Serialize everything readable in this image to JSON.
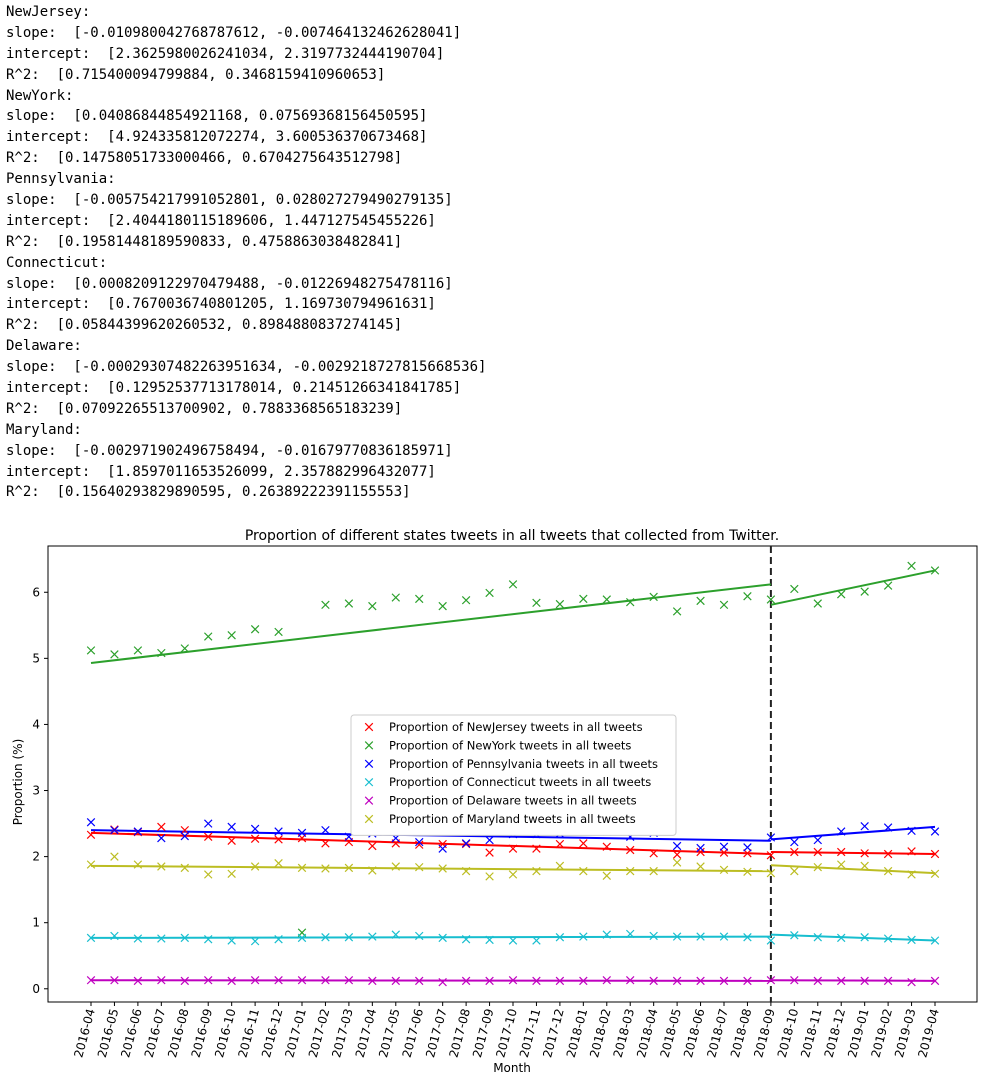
{
  "console": {
    "lines": [
      "NewJersey:",
      "slope:  [-0.010980042768787612, -0.007464132462628041]",
      "intercept:  [2.3625980026241034, 2.3197732444190704]",
      "R^2:  [0.715400094799884, 0.3468159410960653]",
      "NewYork:",
      "slope:  [0.04086844854921168, 0.07569368156450595]",
      "intercept:  [4.924335812072274, 3.600536370673468]",
      "R^2:  [0.14758051733000466, 0.6704275643512798]",
      "Pennsylvania:",
      "slope:  [-0.005754217991052801, 0.028027279490279135]",
      "intercept:  [2.4044180115189606, 1.447127545455226]",
      "R^2:  [0.19581448189590833, 0.4758863038482841]",
      "Connecticut:",
      "slope:  [0.0008209122970479488, -0.01226948275478116]",
      "intercept:  [0.7670036740801205, 1.169730794961631]",
      "R^2:  [0.05844399620260532, 0.8984880837274145]",
      "Delaware:",
      "slope:  [-0.00029307482263951634, -0.0029218727815668536]",
      "intercept:  [0.12952537713178014, 0.21451266341841785]",
      "R^2:  [0.07092265513700902, 0.7883368565183239]",
      "Maryland:",
      "slope:  [-0.002971902496758494, -0.01679770836185971]",
      "intercept:  [1.8597011653526099, 2.357882996432077]",
      "R^2:  [0.15640293829890595, 0.26389222391155553]"
    ]
  },
  "chart_data": {
    "type": "scatter",
    "title": "Proportion of different states tweets in all tweets that collected from Twitter.",
    "xlabel": "Month",
    "ylabel": "Proportion (%)",
    "ylim": [
      -0.2,
      6.7
    ],
    "yticks": [
      0,
      1,
      2,
      3,
      4,
      5,
      6
    ],
    "grid": false,
    "legend_position": "center",
    "breakpoint": "2018-09",
    "categories": [
      "2016-04",
      "2016-05",
      "2016-06",
      "2016-07",
      "2016-08",
      "2016-09",
      "2016-10",
      "2016-11",
      "2016-12",
      "2017-01",
      "2017-02",
      "2017-03",
      "2017-04",
      "2017-05",
      "2017-06",
      "2017-07",
      "2017-08",
      "2017-09",
      "2017-10",
      "2017-11",
      "2017-12",
      "2018-01",
      "2018-02",
      "2018-03",
      "2018-04",
      "2018-05",
      "2018-06",
      "2018-07",
      "2018-08",
      "2018-09",
      "2018-10",
      "2018-11",
      "2018-12",
      "2019-01",
      "2019-02",
      "2019-03",
      "2019-04"
    ],
    "series": [
      {
        "name": "Proportion of NewJersey tweets in all tweets",
        "color": "#ff0000",
        "values": [
          2.33,
          2.41,
          2.37,
          2.45,
          2.4,
          2.3,
          2.24,
          2.27,
          2.26,
          2.28,
          2.2,
          2.22,
          2.16,
          2.2,
          2.18,
          2.19,
          2.19,
          2.06,
          2.12,
          2.12,
          2.19,
          2.2,
          2.15,
          2.1,
          2.05,
          2.03,
          2.07,
          2.06,
          2.05,
          2.02,
          2.07,
          2.07,
          2.07,
          2.05,
          2.04,
          2.08,
          2.04
        ],
        "trend": [
          [
            2.36,
            2.04
          ],
          [
            2.07,
            2.04
          ]
        ]
      },
      {
        "name": "Proportion of NewYork tweets in all tweets",
        "color": "#2ca02c",
        "values": [
          5.12,
          5.06,
          5.12,
          5.08,
          5.15,
          5.33,
          5.35,
          5.44,
          5.4,
          0.85,
          5.81,
          5.83,
          5.79,
          5.92,
          5.9,
          5.79,
          5.88,
          5.99,
          6.12,
          5.84,
          5.82,
          5.9,
          5.89,
          5.85,
          5.93,
          5.71,
          5.87,
          5.81,
          5.94,
          5.89,
          6.05,
          5.83,
          5.97,
          6.01,
          6.1,
          6.4,
          6.33
        ],
        "trend": [
          [
            4.93,
            6.12
          ],
          [
            5.81,
            6.33
          ]
        ]
      },
      {
        "name": "Proportion of Pennsylvania tweets in all tweets",
        "color": "#0000ff",
        "values": [
          2.52,
          2.4,
          2.38,
          2.28,
          2.31,
          2.5,
          2.45,
          2.42,
          2.38,
          2.36,
          2.4,
          2.3,
          2.35,
          2.28,
          2.22,
          2.12,
          2.2,
          2.25,
          2.34,
          2.34,
          2.35,
          2.4,
          2.38,
          2.3,
          2.36,
          2.16,
          2.13,
          2.15,
          2.14,
          2.29,
          2.22,
          2.25,
          2.38,
          2.46,
          2.44,
          2.39,
          2.38
        ],
        "trend": [
          [
            2.4,
            2.24
          ],
          [
            2.26,
            2.45
          ]
        ]
      },
      {
        "name": "Proportion of Connecticut tweets in all tweets",
        "color": "#17becf",
        "values": [
          0.77,
          0.8,
          0.76,
          0.76,
          0.77,
          0.75,
          0.73,
          0.72,
          0.75,
          0.77,
          0.78,
          0.78,
          0.79,
          0.82,
          0.8,
          0.77,
          0.75,
          0.74,
          0.73,
          0.73,
          0.78,
          0.79,
          0.82,
          0.83,
          0.8,
          0.79,
          0.79,
          0.79,
          0.78,
          0.73,
          0.81,
          0.78,
          0.77,
          0.78,
          0.76,
          0.74,
          0.73
        ],
        "trend": [
          [
            0.77,
            0.79
          ],
          [
            0.82,
            0.73
          ]
        ]
      },
      {
        "name": "Proportion of Delaware tweets in all tweets",
        "color": "#bf00bf",
        "values": [
          0.13,
          0.13,
          0.12,
          0.13,
          0.12,
          0.13,
          0.12,
          0.13,
          0.13,
          0.13,
          0.13,
          0.13,
          0.12,
          0.12,
          0.12,
          0.1,
          0.12,
          0.12,
          0.13,
          0.12,
          0.12,
          0.12,
          0.13,
          0.13,
          0.12,
          0.12,
          0.12,
          0.12,
          0.12,
          0.13,
          0.13,
          0.12,
          0.12,
          0.12,
          0.12,
          0.1,
          0.12
        ],
        "trend": [
          [
            0.13,
            0.12
          ],
          [
            0.13,
            0.12
          ]
        ]
      },
      {
        "name": "Proportion of Maryland tweets in all tweets",
        "color": "#bcbd22",
        "values": [
          1.88,
          2.0,
          1.88,
          1.85,
          1.83,
          1.73,
          1.74,
          1.85,
          1.9,
          1.83,
          1.82,
          1.83,
          1.79,
          1.85,
          1.84,
          1.82,
          1.78,
          1.7,
          1.73,
          1.78,
          1.86,
          1.78,
          1.71,
          1.78,
          1.78,
          1.91,
          1.85,
          1.8,
          1.77,
          1.75,
          1.78,
          1.84,
          1.88,
          1.86,
          1.78,
          1.73,
          1.74
        ],
        "trend": [
          [
            1.86,
            1.78
          ],
          [
            1.87,
            1.75
          ]
        ]
      }
    ]
  }
}
